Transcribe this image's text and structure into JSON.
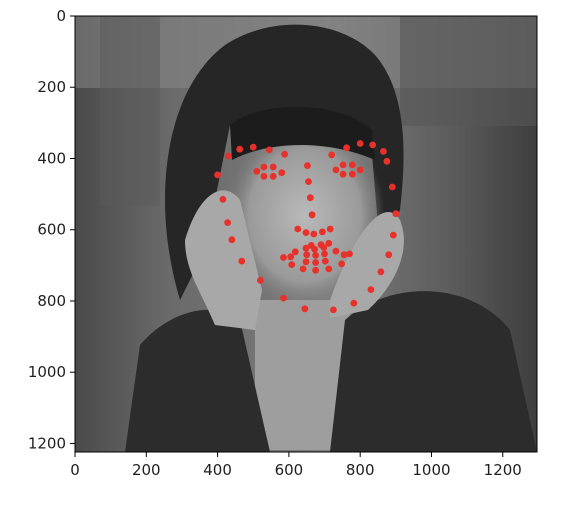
{
  "chart_data": {
    "type": "scatter",
    "title": "",
    "xlabel": "",
    "ylabel": "",
    "xlim": [
      0,
      1296
    ],
    "ylim": [
      1224,
      0
    ],
    "x_ticks": [
      0,
      200,
      400,
      600,
      800,
      1000,
      1200
    ],
    "y_ticks": [
      0,
      200,
      400,
      600,
      800,
      1000,
      1200
    ],
    "x_tick_labels": [
      "0",
      "200",
      "400",
      "600",
      "800",
      "1000",
      "1200"
    ],
    "y_tick_labels": [
      "0",
      "200",
      "400",
      "600",
      "800",
      "1000",
      "1200"
    ],
    "grid": false,
    "background": "grayscale photo: woman resting her face on her hands",
    "series": [
      {
        "name": "facial landmarks",
        "color": "#e8312a",
        "points": [
          [
            400,
            446
          ],
          [
            415,
            515
          ],
          [
            428,
            580
          ],
          [
            440,
            628
          ],
          [
            468,
            688
          ],
          [
            520,
            742
          ],
          [
            585,
            792
          ],
          [
            645,
            822
          ],
          [
            725,
            825
          ],
          [
            782,
            806
          ],
          [
            830,
            768
          ],
          [
            858,
            718
          ],
          [
            880,
            670
          ],
          [
            893,
            615
          ],
          [
            900,
            555
          ],
          [
            890,
            480
          ],
          [
            875,
            408
          ],
          [
            430,
            393
          ],
          [
            462,
            374
          ],
          [
            500,
            368
          ],
          [
            545,
            376
          ],
          [
            588,
            388
          ],
          [
            720,
            390
          ],
          [
            762,
            370
          ],
          [
            800,
            358
          ],
          [
            835,
            362
          ],
          [
            865,
            380
          ],
          [
            652,
            420
          ],
          [
            655,
            465
          ],
          [
            660,
            510
          ],
          [
            665,
            558
          ],
          [
            625,
            598
          ],
          [
            648,
            608
          ],
          [
            670,
            612
          ],
          [
            694,
            606
          ],
          [
            716,
            598
          ],
          [
            510,
            436
          ],
          [
            530,
            424
          ],
          [
            556,
            424
          ],
          [
            580,
            440
          ],
          [
            556,
            450
          ],
          [
            530,
            450
          ],
          [
            732,
            432
          ],
          [
            752,
            418
          ],
          [
            778,
            418
          ],
          [
            800,
            432
          ],
          [
            778,
            444
          ],
          [
            752,
            444
          ],
          [
            585,
            678
          ],
          [
            618,
            662
          ],
          [
            648,
            652
          ],
          [
            672,
            655
          ],
          [
            698,
            650
          ],
          [
            732,
            660
          ],
          [
            770,
            668
          ],
          [
            748,
            696
          ],
          [
            712,
            710
          ],
          [
            675,
            714
          ],
          [
            640,
            710
          ],
          [
            608,
            698
          ],
          [
            605,
            676
          ],
          [
            650,
            670
          ],
          [
            675,
            672
          ],
          [
            700,
            668
          ],
          [
            755,
            670
          ],
          [
            702,
            688
          ],
          [
            675,
            692
          ],
          [
            648,
            690
          ],
          [
            690,
            642
          ],
          [
            712,
            638
          ],
          [
            663,
            644
          ]
        ]
      }
    ]
  }
}
